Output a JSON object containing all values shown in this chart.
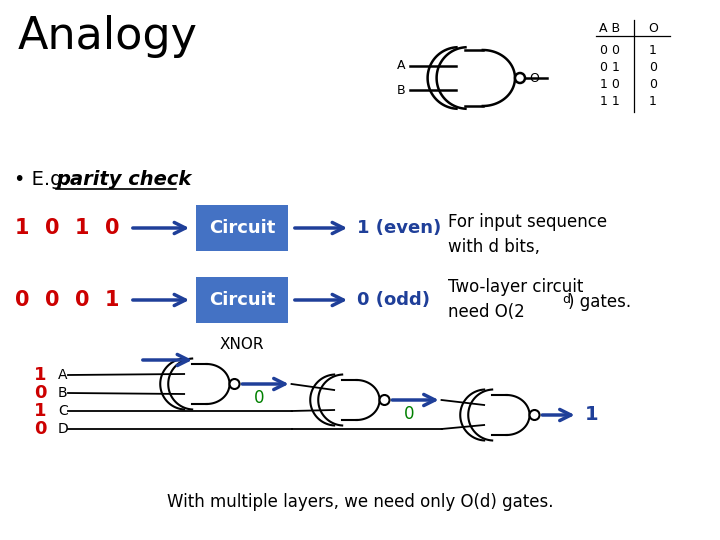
{
  "title": "Analogy",
  "bullet": "• E.g. ",
  "parity_check": "parity check",
  "bg_color": "#ffffff",
  "box_color": "#4472C4",
  "box_text_color": "#ffffff",
  "arrow_color": "#1F3F99",
  "red_color": "#CC0000",
  "green_color": "#008000",
  "blue_output_color": "#1F3F99",
  "row1_bits": [
    "1",
    "0",
    "1",
    "0"
  ],
  "row2_bits": [
    "0",
    "0",
    "0",
    "1"
  ],
  "row1_output": "1 (even)",
  "row2_output": "0 (odd)",
  "right_text1": "For input sequence\nwith d bits,",
  "right_text2": "Two-layer circuit\nneed O(2) gates.",
  "circuit_label": "Circuit",
  "xnor_label": "XNOR",
  "abcd_labels": [
    "A",
    "B",
    "C",
    "D"
  ],
  "abcd_bits": [
    "1",
    "0",
    "1",
    "0"
  ],
  "gate_outputs": [
    "0",
    "0"
  ],
  "final_output": "1",
  "bottom_text": "With multiple layers, we need only O(d) gates.",
  "table_rows": [
    [
      "0 0",
      "1"
    ],
    [
      "0 1",
      "0"
    ],
    [
      "1 0",
      "0"
    ],
    [
      "1 1",
      "1"
    ]
  ]
}
